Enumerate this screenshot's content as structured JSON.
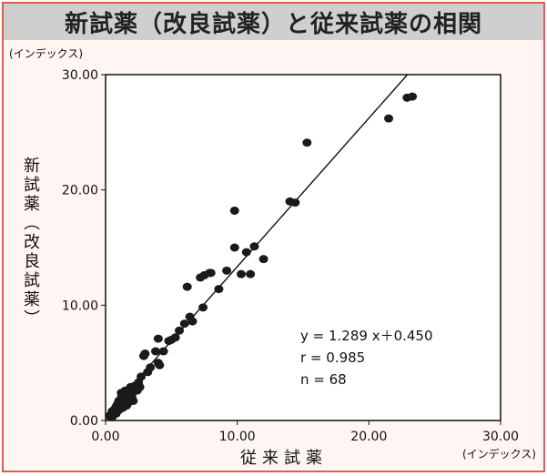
{
  "chart_data": {
    "type": "scatter",
    "title": "新試薬（改良試薬）と従来試薬の相関",
    "y_unit": "(インデックス)",
    "x_unit": "(インデックス)",
    "ylabel": "新試薬（改良試薬）",
    "xlabel": "従来試薬",
    "xlim": [
      0,
      30
    ],
    "ylim": [
      0,
      30
    ],
    "x_ticks": [
      "0.00",
      "10.00",
      "20.00",
      "30.00"
    ],
    "y_ticks": [
      "0.00",
      "10.00",
      "20.00",
      "30.00"
    ],
    "regression": {
      "slope": 1.289,
      "intercept": 0.45
    },
    "annotations": [
      "y = 1.289 x＋0.450",
      "r = 0.985",
      "n = 68"
    ],
    "points": [
      [
        0.3,
        0.4
      ],
      [
        0.4,
        0.3
      ],
      [
        0.5,
        0.8
      ],
      [
        0.6,
        0.5
      ],
      [
        0.7,
        1.0
      ],
      [
        0.8,
        1.2
      ],
      [
        0.9,
        1.4
      ],
      [
        1.0,
        0.9
      ],
      [
        1.0,
        1.7
      ],
      [
        1.1,
        1.3
      ],
      [
        1.2,
        2.0
      ],
      [
        1.2,
        2.4
      ],
      [
        1.3,
        1.8
      ],
      [
        1.4,
        2.2
      ],
      [
        1.5,
        2.6
      ],
      [
        1.6,
        2.0
      ],
      [
        1.7,
        1.5
      ],
      [
        1.8,
        2.5
      ],
      [
        1.9,
        2.9
      ],
      [
        2.0,
        2.1
      ],
      [
        2.1,
        1.7
      ],
      [
        2.2,
        3.0
      ],
      [
        2.4,
        2.6
      ],
      [
        2.6,
        2.9
      ],
      [
        2.7,
        3.8
      ],
      [
        2.9,
        5.6
      ],
      [
        3.0,
        5.8
      ],
      [
        3.8,
        6.0
      ],
      [
        4.0,
        5.0
      ],
      [
        4.1,
        4.8
      ],
      [
        4.0,
        7.1
      ],
      [
        4.4,
        6.0
      ],
      [
        4.8,
        6.9
      ],
      [
        5.0,
        7.0
      ],
      [
        5.6,
        7.8
      ],
      [
        6.0,
        8.4
      ],
      [
        6.2,
        11.6
      ],
      [
        6.4,
        9.0
      ],
      [
        6.6,
        8.6
      ],
      [
        7.2,
        12.4
      ],
      [
        7.4,
        9.8
      ],
      [
        7.5,
        12.6
      ],
      [
        7.9,
        12.8
      ],
      [
        8.0,
        12.8
      ],
      [
        9.8,
        18.2
      ],
      [
        9.8,
        15.0
      ],
      [
        10.3,
        12.7
      ],
      [
        10.7,
        14.6
      ],
      [
        11.0,
        12.7
      ],
      [
        11.3,
        15.1
      ],
      [
        12.0,
        14.0
      ],
      [
        14.0,
        19.0
      ],
      [
        14.4,
        18.9
      ],
      [
        15.3,
        24.1
      ],
      [
        21.5,
        26.2
      ],
      [
        22.9,
        28.0
      ],
      [
        23.3,
        28.1
      ],
      [
        3.2,
        4.2
      ],
      [
        3.4,
        4.6
      ],
      [
        0.5,
        0.3
      ],
      [
        1.3,
        1.1
      ],
      [
        1.6,
        1.3
      ],
      [
        2.5,
        3.3
      ],
      [
        5.3,
        7.2
      ],
      [
        8.6,
        11.4
      ],
      [
        9.2,
        13.0
      ],
      [
        0.8,
        0.6
      ],
      [
        1.9,
        2.2
      ]
    ]
  }
}
